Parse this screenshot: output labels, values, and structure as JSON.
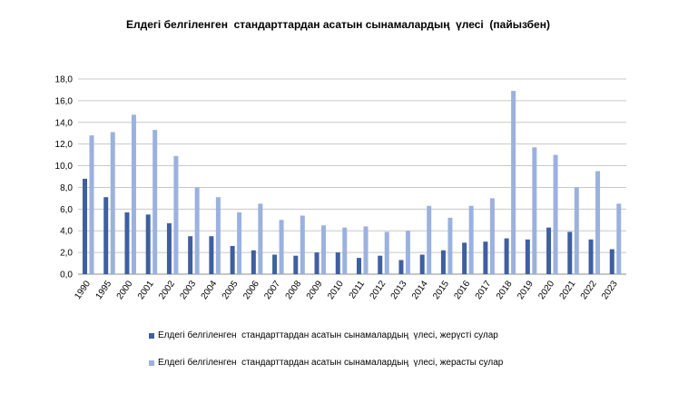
{
  "chart_data": {
    "type": "bar",
    "title": "Елдегі белгіленген  стандарттардан асатын сынамалардың  үлесі  (пайызбен)",
    "xlabel": "",
    "ylabel": "",
    "ylim": [
      0,
      18
    ],
    "ytick_labels": [
      "0,0",
      "2,0",
      "4,0",
      "6,0",
      "8,0",
      "10,0",
      "12,0",
      "14,0",
      "16,0",
      "18,0"
    ],
    "categories": [
      "1990",
      "1995",
      "2000",
      "2001",
      "2002",
      "2003",
      "2004",
      "2005",
      "2006",
      "2007",
      "2008",
      "2009",
      "2010",
      "2011",
      "2012",
      "2013",
      "2014",
      "2015",
      "2016",
      "2017",
      "2018",
      "2019",
      "2020",
      "2021",
      "2022",
      "2023"
    ],
    "series": [
      {
        "name": "Елдегі белгіленген  стандарттардан асатын сынамалардың  үлесі, жерүсті сулар",
        "color": "#3f5f9f",
        "values": [
          8.8,
          7.1,
          5.7,
          5.5,
          4.7,
          3.5,
          3.5,
          2.6,
          2.2,
          1.8,
          1.7,
          2.0,
          2.0,
          1.5,
          1.7,
          1.3,
          1.8,
          2.2,
          2.9,
          3.0,
          3.3,
          3.2,
          4.3,
          3.9,
          3.2,
          2.3
        ]
      },
      {
        "name": "Елдегі белгіленген  стандарттардан асатын сынамалардың  үлесі, жерасты сулар",
        "color": "#9bb1de",
        "values": [
          12.8,
          13.1,
          14.7,
          13.3,
          10.9,
          8.0,
          7.1,
          5.7,
          6.5,
          5.0,
          5.4,
          4.5,
          4.3,
          4.4,
          3.9,
          4.0,
          6.3,
          5.2,
          6.3,
          7.0,
          16.9,
          11.7,
          11.0,
          8.0,
          9.5,
          6.5
        ]
      }
    ],
    "grid": true,
    "legend_position": "bottom"
  }
}
